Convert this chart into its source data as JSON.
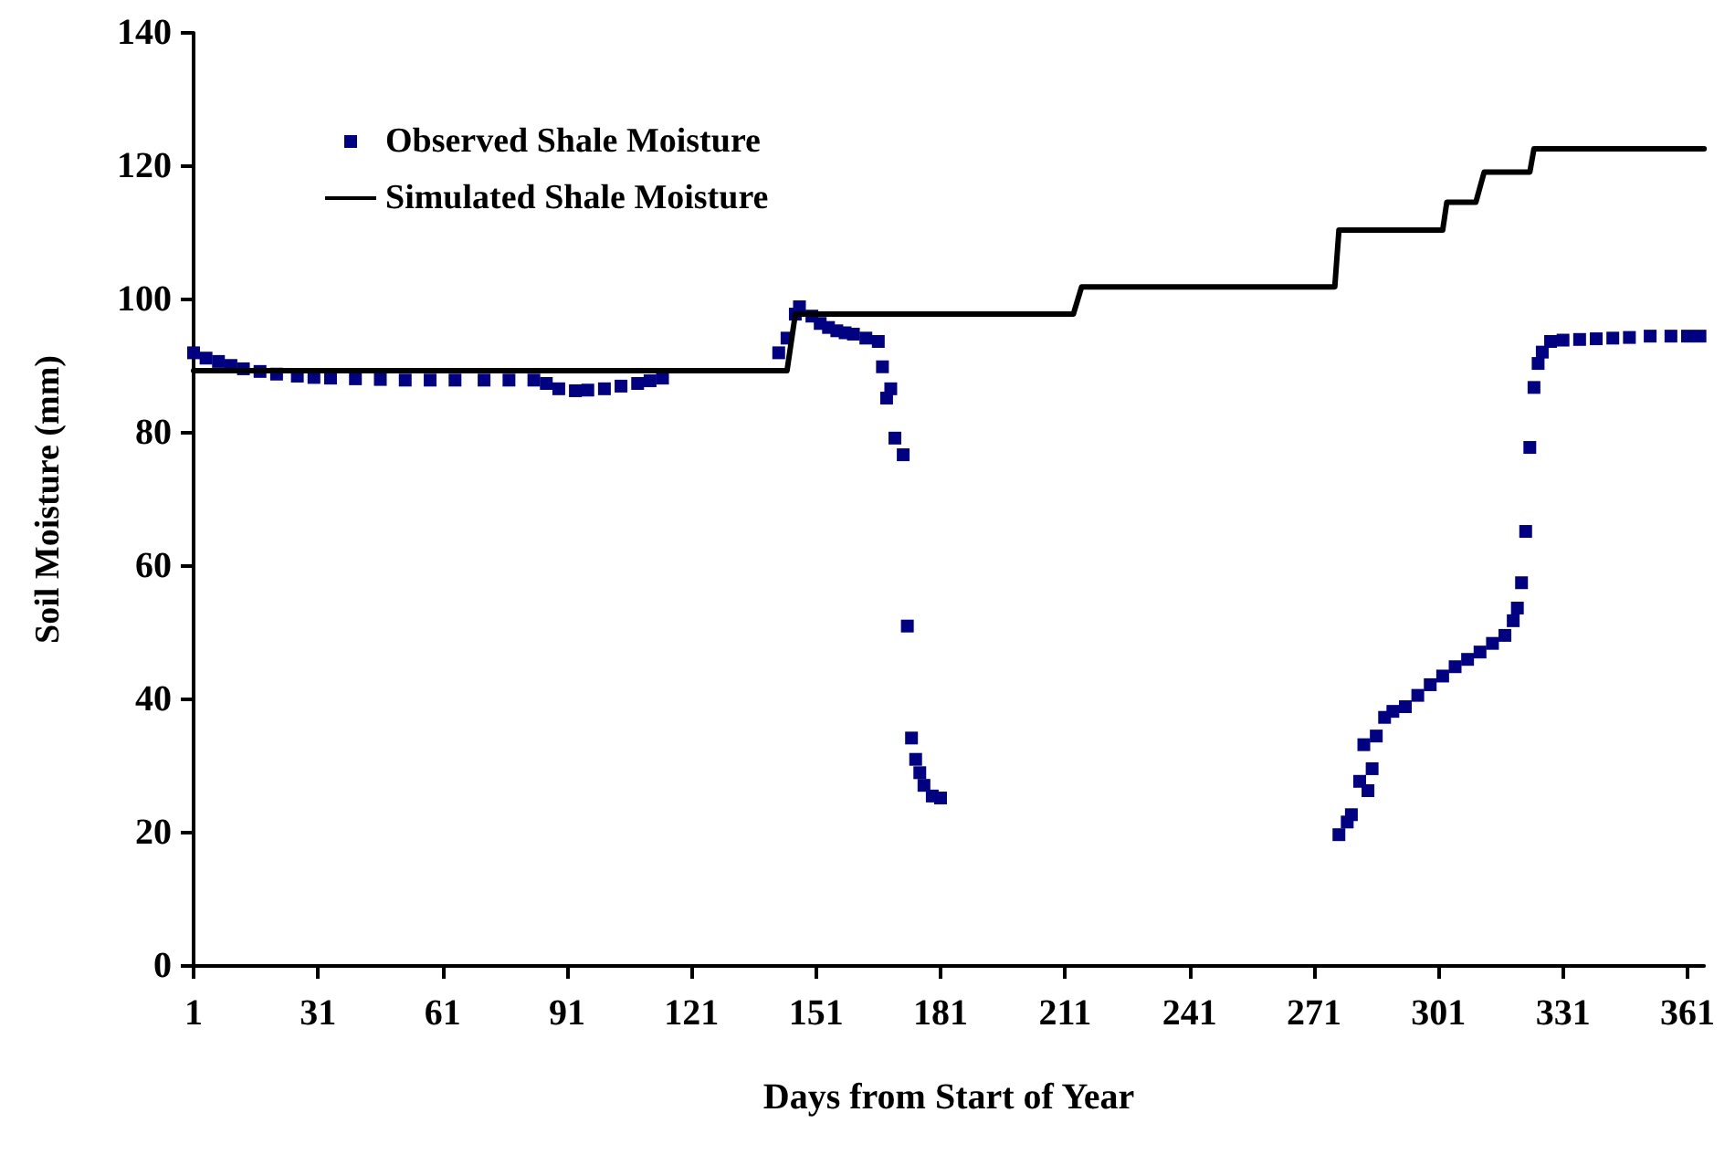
{
  "chart_data": {
    "type": "scatter",
    "xlabel": "Days from Start of Year",
    "ylabel": "Soil Moisture (mm)",
    "xlim": [
      1,
      365
    ],
    "ylim": [
      0,
      140
    ],
    "xticks": [
      1,
      31,
      61,
      91,
      121,
      151,
      181,
      211,
      241,
      271,
      301,
      331,
      361
    ],
    "yticks": [
      0,
      20,
      40,
      60,
      80,
      100,
      120,
      140
    ],
    "grid": false,
    "legend": "top left",
    "line_style": "solid",
    "series": [
      {
        "name": "Observed Shale Moisture",
        "marker": "square",
        "color": "#000080",
        "x": [
          1,
          4,
          7,
          10,
          13,
          17,
          21,
          26,
          30,
          34,
          40,
          46,
          52,
          58,
          64,
          71,
          77,
          83,
          86,
          89,
          93,
          96,
          100,
          104,
          108,
          111,
          114,
          142,
          144,
          146,
          147,
          150,
          152,
          154,
          156,
          158,
          160,
          163,
          166,
          167,
          168,
          169,
          170,
          172,
          173,
          174,
          175,
          176,
          177,
          179,
          181,
          277,
          279,
          280,
          282,
          283,
          284,
          285,
          286,
          288,
          290,
          293,
          296,
          299,
          302,
          305,
          308,
          311,
          314,
          317,
          319,
          320,
          321,
          322,
          323,
          324,
          325,
          326,
          328,
          331,
          335,
          339,
          343,
          347,
          352,
          357,
          361,
          364
        ],
        "values": [
          92.0,
          91.2,
          90.7,
          90.1,
          89.6,
          89.2,
          88.8,
          88.5,
          88.3,
          88.2,
          88.1,
          88.0,
          87.9,
          87.9,
          87.9,
          87.9,
          87.9,
          87.9,
          87.4,
          86.6,
          86.3,
          86.4,
          86.6,
          87.0,
          87.4,
          87.8,
          88.2,
          92.0,
          94.2,
          97.8,
          98.9,
          97.5,
          96.4,
          95.8,
          95.3,
          95.0,
          94.8,
          94.2,
          93.7,
          89.9,
          85.2,
          86.6,
          79.2,
          76.7,
          51.0,
          34.2,
          31.0,
          29.0,
          27.1,
          25.5,
          25.2,
          19.7,
          21.6,
          22.7,
          27.7,
          33.2,
          26.3,
          29.6,
          34.5,
          37.3,
          38.2,
          38.9,
          40.6,
          42.2,
          43.5,
          44.9,
          46.0,
          47.1,
          48.4,
          49.6,
          51.8,
          53.7,
          57.5,
          65.2,
          77.8,
          86.8,
          90.4,
          92.1,
          93.7,
          93.9,
          94.0,
          94.1,
          94.2,
          94.3,
          94.5,
          94.5,
          94.5,
          94.5
        ]
      },
      {
        "name": "Simulated Shale Moisture",
        "type": "line",
        "marker": "none",
        "color": "#000000",
        "x": [
          1,
          144,
          146,
          213,
          215,
          276,
          277,
          302,
          303,
          310,
          312,
          323,
          324,
          365
        ],
        "values": [
          89.3,
          89.3,
          97.8,
          97.8,
          101.9,
          101.9,
          110.4,
          110.4,
          114.6,
          114.6,
          119.1,
          119.1,
          122.6,
          122.6
        ]
      }
    ]
  }
}
